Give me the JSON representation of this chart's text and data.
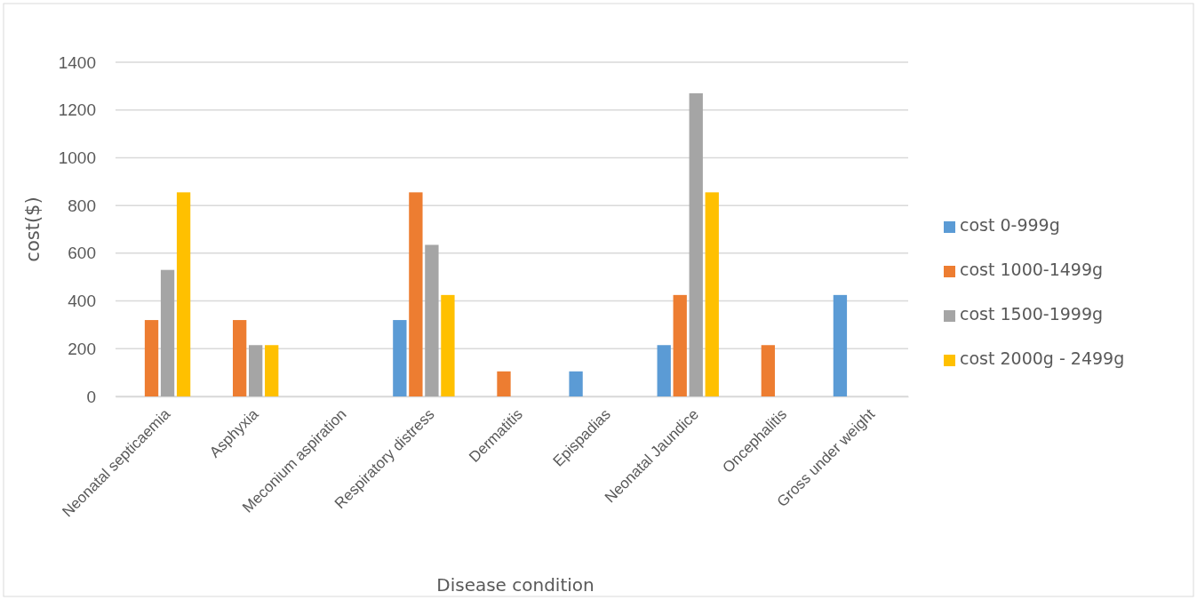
{
  "chart_data": {
    "type": "bar",
    "xlabel": "Disease condition",
    "ylabel": "cost($)",
    "categories": [
      "Neonatal septicaemia",
      "Asphyxia",
      "Meconium aspiration",
      "Respiratory distress",
      "Dermatitis",
      "Epispadias",
      "Neonatal Jaundice",
      "Oncephalitis",
      "Gross under weight"
    ],
    "series": [
      {
        "name": "cost 0-999g",
        "color": "#5b9bd5",
        "values": [
          0,
          0,
          0,
          320,
          0,
          105,
          215,
          0,
          425
        ]
      },
      {
        "name": "cost 1000-1499g",
        "color": "#ed7d31",
        "values": [
          320,
          320,
          0,
          855,
          105,
          0,
          425,
          215,
          0
        ]
      },
      {
        "name": "cost 1500-1999g",
        "color": "#a5a5a5",
        "values": [
          530,
          215,
          0,
          635,
          0,
          0,
          1270,
          0,
          0
        ]
      },
      {
        "name": "cost 2000g - 2499g",
        "color": "#ffc000",
        "values": [
          855,
          215,
          0,
          425,
          0,
          0,
          855,
          0,
          0
        ]
      }
    ],
    "ylim": [
      0,
      1400
    ],
    "yticks": [
      0,
      200,
      400,
      600,
      800,
      1000,
      1200,
      1400
    ],
    "grid": "y",
    "legend": "right"
  }
}
